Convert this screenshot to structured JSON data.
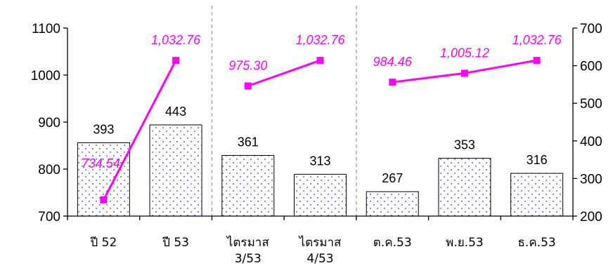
{
  "chart_data": {
    "type": "bar",
    "categories": [
      [
        "ปี 52"
      ],
      [
        "ปี 53"
      ],
      [
        "ไตรมาส",
        "3/53"
      ],
      [
        "ไตรมาส",
        "4/53"
      ],
      [
        "ต.ค.53"
      ],
      [
        "พ.ย.53"
      ],
      [
        "ธ.ค.53"
      ]
    ],
    "groups": [
      [
        0,
        1
      ],
      [
        2,
        3
      ],
      [
        4,
        5,
        6
      ]
    ],
    "bars": {
      "axis": "left",
      "values": [
        856,
        894,
        829,
        789,
        752,
        823,
        791
      ],
      "labels": [
        "393",
        "443",
        "361",
        "313",
        "267",
        "353",
        "316"
      ],
      "fill_pattern": "dotted",
      "dot_color": "#3333ff",
      "border_color": "#000000"
    },
    "line": {
      "axis": "right",
      "color": "#ff00ff",
      "marker": "square",
      "values": [
        243,
        614,
        546,
        614,
        556,
        580,
        614
      ],
      "labels": [
        "734.54",
        "1,032.76",
        "975.30",
        "1,032.76",
        "984.46",
        "1,005.12",
        "1,032.76"
      ]
    },
    "left_axis": {
      "min": 700,
      "max": 1100,
      "ticks": [
        "700",
        "800",
        "900",
        "1000",
        "1100"
      ]
    },
    "right_axis": {
      "min": 200,
      "max": 700,
      "ticks": [
        "200",
        "300",
        "400",
        "500",
        "600",
        "700"
      ]
    },
    "separator_style": "dashed",
    "separator_color": "#aaaaaa",
    "grid": false,
    "legend": "none"
  }
}
